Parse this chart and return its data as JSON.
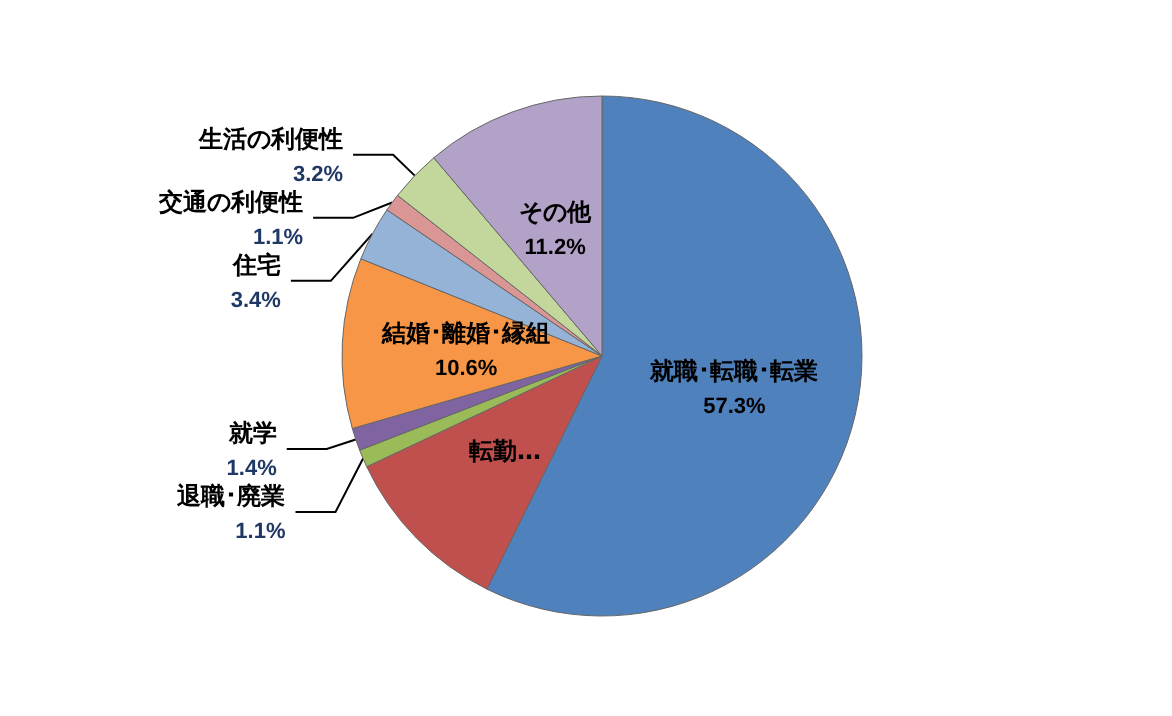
{
  "chart_data": {
    "type": "pie",
    "categories": [
      "就職･転職･転業",
      "転勤…",
      "退職･廃業",
      "就学",
      "結婚･離婚･縁組",
      "住宅",
      "交通の利便性",
      "生活の利便性",
      "その他"
    ],
    "values": [
      57.3,
      10.7,
      1.1,
      1.4,
      10.6,
      3.4,
      1.1,
      3.2,
      11.2
    ],
    "value_labels": [
      "57.3%",
      null,
      "1.1%",
      "1.4%",
      "10.6%",
      "3.4%",
      "1.1%",
      "3.2%",
      "11.2%"
    ],
    "colors": [
      "#4f81bd",
      "#c0504d",
      "#9bbb59",
      "#8064a2",
      "#f79646",
      "#95b3d7",
      "#d99694",
      "#c3d69b",
      "#b3a2c7"
    ],
    "legend": false
  }
}
